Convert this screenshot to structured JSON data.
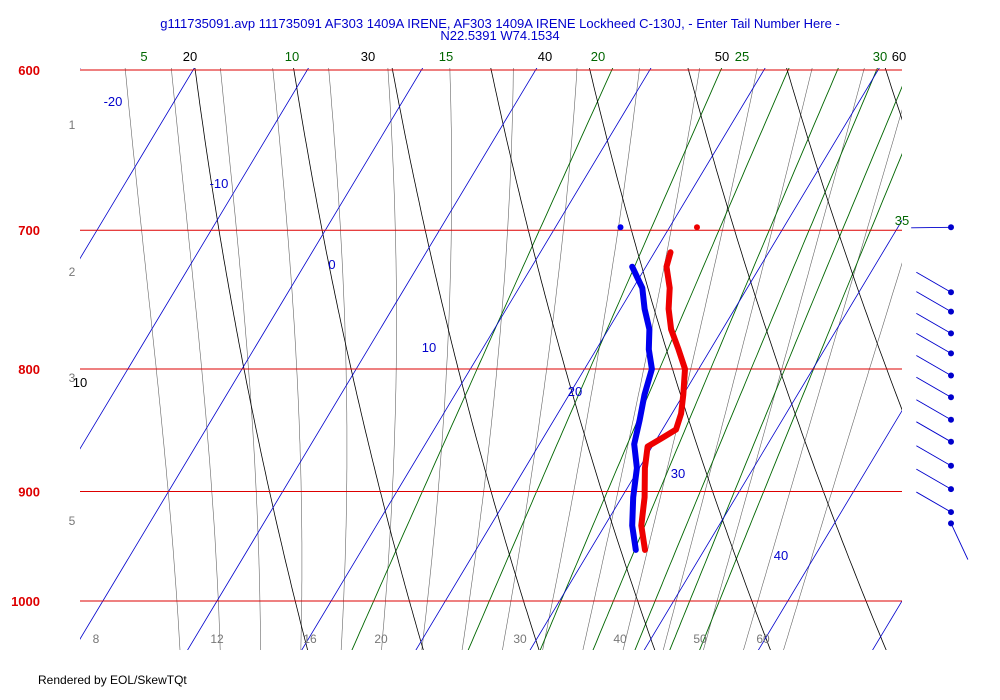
{
  "title_line1": "g111735091.avp 111735091 AF303 1409A IRENE, AF303 1409A IRENE Lockheed C-130J, - Enter Tail Number Here -",
  "title_line2": "N22.5391 W74.1534",
  "footer": "Rendered by EOL/SkewTQt",
  "colors": {
    "pressure": "#dd0000",
    "isotherm": "#0000cc",
    "dry_adiabat": "#000000",
    "mixing_ratio": "#006600",
    "moist_adiabat": "#666666",
    "temperature": "#ee0000",
    "dewpoint": "#0000ee",
    "wind": "#0000cc"
  },
  "chart_data": {
    "type": "line",
    "yscale": "log-pressure",
    "ylim": [
      1000,
      600
    ],
    "xlim_temp_at_1000": [
      -22,
      50
    ],
    "pressure_levels": [
      "600",
      "700",
      "800",
      "900",
      "1000"
    ],
    "height_labels": [
      {
        "label": "1",
        "p": 632
      },
      {
        "label": "2",
        "p": 728
      },
      {
        "label": "3",
        "p": 806
      },
      {
        "label": "5",
        "p": 925
      }
    ],
    "isotherm_labels": [
      "-20",
      "-10",
      "0",
      "10",
      "20",
      "30",
      "40"
    ],
    "bottom_labels": [
      "8",
      "12",
      "16",
      "20",
      "30",
      "40",
      "50",
      "60"
    ],
    "dry_adiabat_labels": [
      "20",
      "30",
      "40",
      "50",
      "60",
      "10"
    ],
    "mixing_ratio_labels": [
      "5",
      "10",
      "15",
      "20",
      "25",
      "30",
      "35"
    ],
    "series": [
      {
        "key": "temperature",
        "points": [
          {
            "p": 952,
            "t": 24.8
          },
          {
            "p": 930,
            "t": 23.2
          },
          {
            "p": 905,
            "t": 22.0
          },
          {
            "p": 880,
            "t": 20.5
          },
          {
            "p": 862,
            "t": 19.6
          },
          {
            "p": 855,
            "t": 20.4
          },
          {
            "p": 848,
            "t": 21.2
          },
          {
            "p": 835,
            "t": 20.8
          },
          {
            "p": 820,
            "t": 20.0
          },
          {
            "p": 800,
            "t": 18.8
          },
          {
            "p": 785,
            "t": 17.2
          },
          {
            "p": 770,
            "t": 15.5
          },
          {
            "p": 755,
            "t": 14.2
          },
          {
            "p": 740,
            "t": 13.2
          },
          {
            "p": 725,
            "t": 11.8
          },
          {
            "p": 715,
            "t": 11.4
          }
        ]
      },
      {
        "key": "dewpoint",
        "points": [
          {
            "p": 952,
            "t": 24.0
          },
          {
            "p": 930,
            "t": 22.4
          },
          {
            "p": 905,
            "t": 21.0
          },
          {
            "p": 880,
            "t": 19.8
          },
          {
            "p": 860,
            "t": 18.3
          },
          {
            "p": 840,
            "t": 17.5
          },
          {
            "p": 820,
            "t": 16.6
          },
          {
            "p": 800,
            "t": 15.9
          },
          {
            "p": 785,
            "t": 14.6
          },
          {
            "p": 770,
            "t": 13.6
          },
          {
            "p": 755,
            "t": 12.1
          },
          {
            "p": 740,
            "t": 10.8
          },
          {
            "p": 725,
            "t": 8.8
          }
        ]
      }
    ],
    "isolated_points": [
      {
        "p": 698,
        "t": 5.7,
        "key": "dewpoint"
      },
      {
        "p": 698,
        "t": 12.4,
        "key": "temperature"
      }
    ],
    "wind_levels": [
      698,
      743,
      757,
      773,
      788,
      805,
      822,
      840,
      858,
      878,
      898,
      918,
      928
    ]
  }
}
